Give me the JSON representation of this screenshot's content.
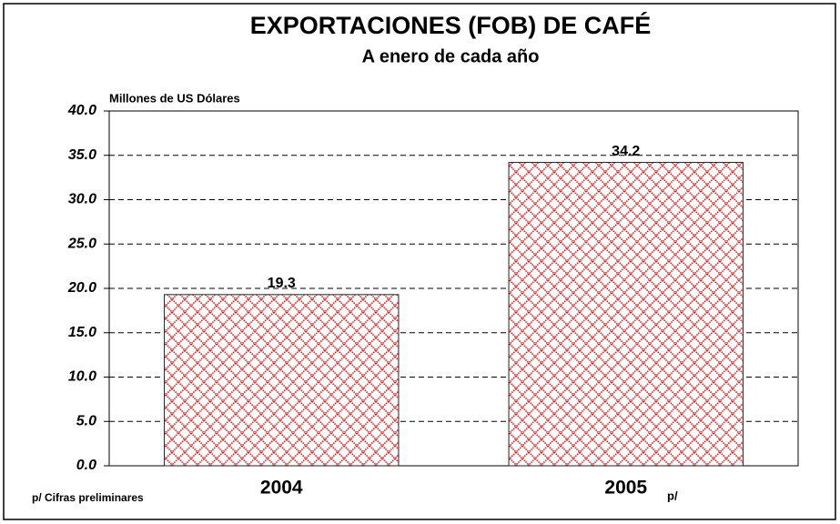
{
  "chart_data": {
    "type": "bar",
    "title": "EXPORTACIONES (FOB) DE CAFÉ",
    "subtitle": "A enero de cada año",
    "y_label": "Millones de US Dólares",
    "categories": [
      "2004",
      "2005"
    ],
    "category_note": "p/",
    "footnote": "p/ Cifras preliminares",
    "values": [
      19.3,
      34.2
    ],
    "color": "#d42020",
    "ylim": [
      0,
      40
    ],
    "yticks": [
      {
        "value": 0,
        "label": "0.0"
      },
      {
        "value": 5,
        "label": "5.0"
      },
      {
        "value": 10,
        "label": "10.0"
      },
      {
        "value": 15,
        "label": "15.0"
      },
      {
        "value": 20,
        "label": "20.0"
      },
      {
        "value": 25,
        "label": "25.0"
      },
      {
        "value": 30,
        "label": "30.0"
      },
      {
        "value": 35,
        "label": "35.0"
      },
      {
        "value": 40,
        "label": "40.0"
      }
    ],
    "grid": true
  }
}
